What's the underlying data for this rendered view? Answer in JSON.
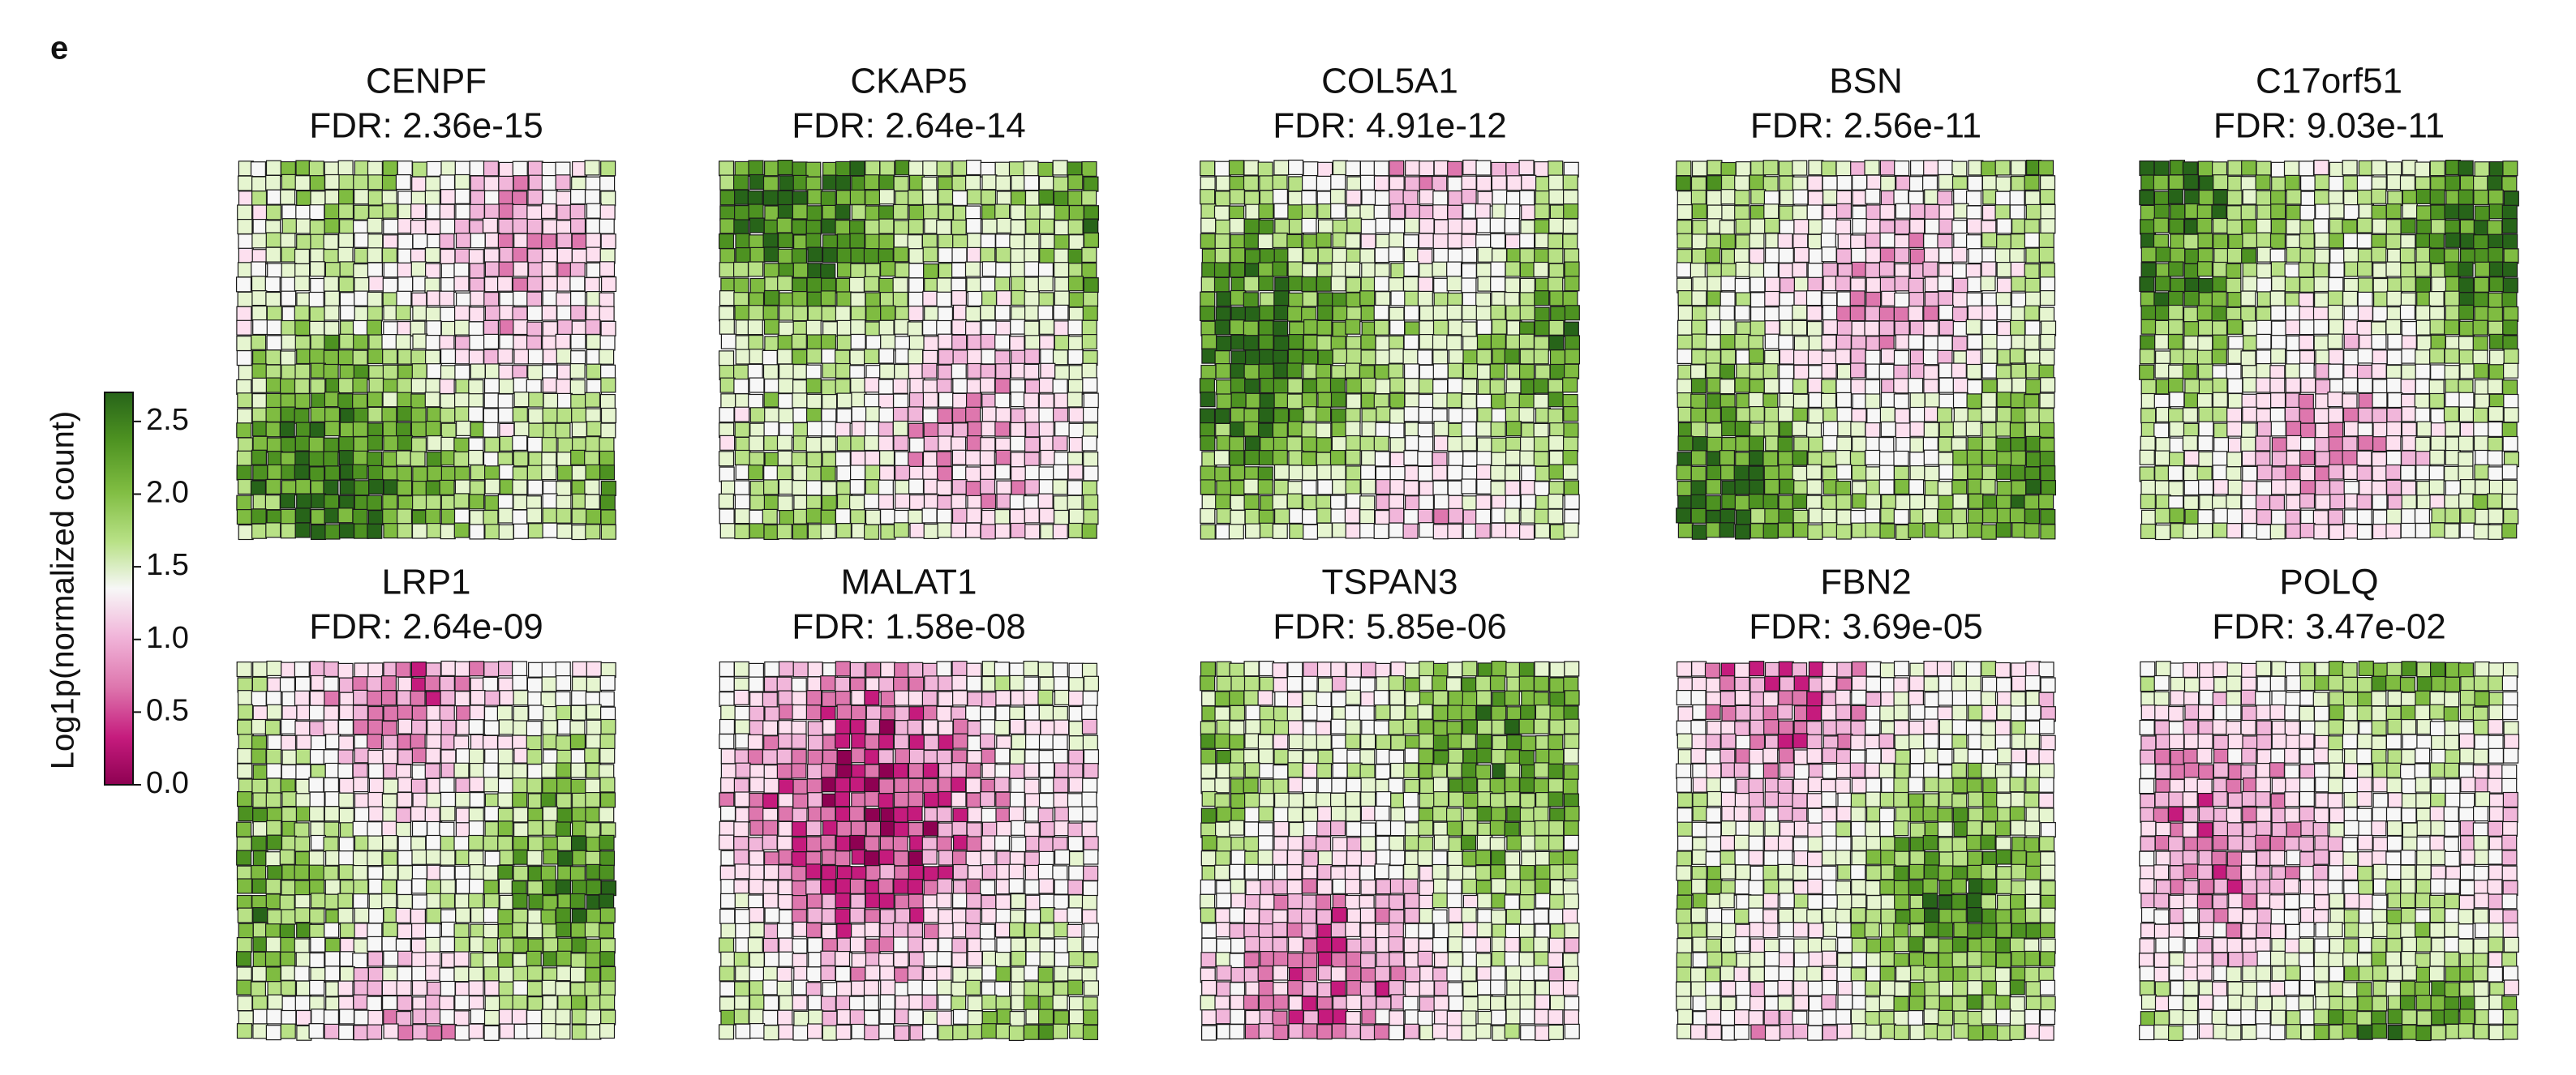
{
  "figure": {
    "panel_label": "e",
    "colorbar": {
      "label": "Log1p(normalized count)",
      "ylim": [
        0,
        2.7
      ],
      "yticks": [
        {
          "value": 0,
          "label": "0.0"
        },
        0.5,
        {
          "value": 1,
          "label": "1.0"
        },
        1.5,
        {
          "value": 2,
          "label": "2.0"
        },
        2.5
      ]
    },
    "panels": [
      {
        "title": "CENPF",
        "subtitle": "FDR: 2.36e-15"
      },
      {
        "title": "CKAP5",
        "subtitle": "FDR: 2.64e-14"
      },
      {
        "title": "COL5A1",
        "subtitle": "FDR: 4.91e-12"
      },
      {
        "title": "BSN",
        "subtitle": "FDR: 2.56e-11"
      },
      {
        "title": "C17orf51",
        "subtitle": "FDR: 9.03e-11"
      },
      {
        "title": "LRP1",
        "subtitle": "FDR: 2.64e-09"
      },
      {
        "title": "MALAT1",
        "subtitle": "FDR: 1.58e-08"
      },
      {
        "title": "TSPAN3",
        "subtitle": "FDR: 5.85e-06"
      },
      {
        "title": "FBN2",
        "subtitle": "FDR: 3.69e-05"
      },
      {
        "title": "POLQ",
        "subtitle": "FDR: 3.47e-02"
      }
    ]
  }
}
